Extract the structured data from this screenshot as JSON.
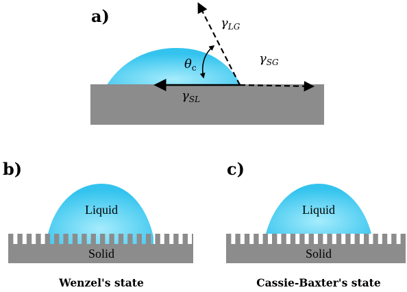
{
  "panels": {
    "a": {
      "label": "a)",
      "gamma_symbol": "γ",
      "gamma_lg_sub": "LG",
      "gamma_sg_sub": "SG",
      "gamma_sl_sub": "SL",
      "theta_symbol": "θ",
      "theta_sub": "c"
    },
    "b": {
      "label": "b)",
      "liquid_label": "Liquid",
      "solid_label": "Solid",
      "caption": "Wenzel's state"
    },
    "c": {
      "label": "c)",
      "liquid_label": "Liquid",
      "solid_label": "Solid",
      "caption": "Cassie-Baxter's state"
    }
  },
  "colors": {
    "substrate": "#8c8c8c",
    "droplet_center": "#9ee8fb",
    "droplet_edge": "#34c4ee",
    "arrow": "#000000"
  }
}
